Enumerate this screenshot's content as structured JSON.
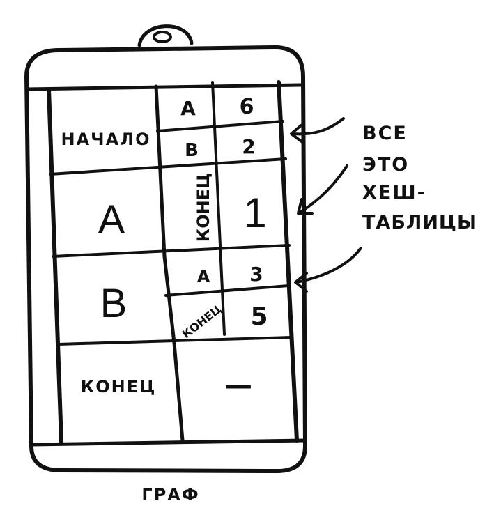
{
  "diagram": {
    "caption": "ГРАФ",
    "rows": [
      {
        "key": "НАЧАЛО",
        "entries": [
          {
            "k": "A",
            "v": "6"
          },
          {
            "k": "B",
            "v": "2"
          }
        ]
      },
      {
        "key": "A",
        "entries": [
          {
            "k": "КОНЕЦ",
            "v": "1"
          }
        ]
      },
      {
        "key": "B",
        "entries": [
          {
            "k": "A",
            "v": "3"
          },
          {
            "k": "КОНЕЦ",
            "v": "5"
          }
        ]
      },
      {
        "key": "КОНЕЦ",
        "entries": [
          {
            "k": "—",
            "v": ""
          }
        ]
      }
    ],
    "annotation": [
      "ВСЕ",
      "ЭТО",
      "ХЕШ-",
      "ТАБЛИЦЫ"
    ]
  },
  "colors": {
    "ink": "#111111",
    "paper": "#ffffff"
  }
}
